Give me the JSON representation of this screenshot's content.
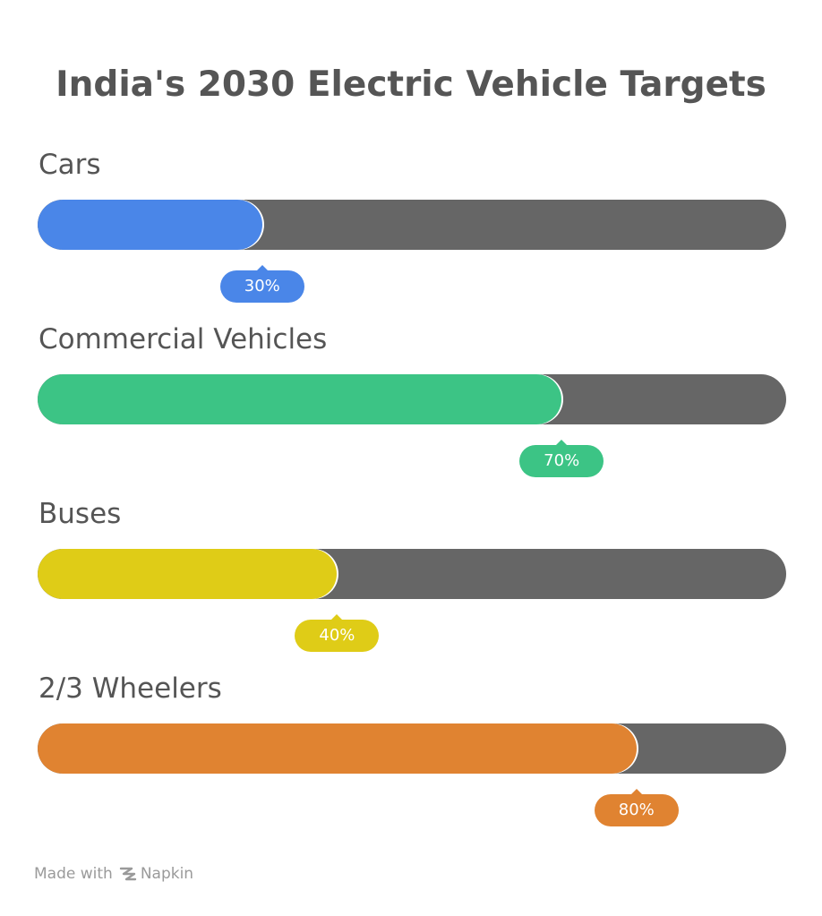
{
  "chart_data": {
    "type": "bar",
    "title": "India's 2030 Electric Vehicle Targets",
    "orientation": "horizontal",
    "unit": "%",
    "ylim": [
      0,
      100
    ],
    "categories": [
      "Cars",
      "Commercial Vehicles",
      "Buses",
      "2/3 Wheelers"
    ],
    "values": [
      30,
      70,
      40,
      80
    ],
    "value_labels": [
      "30%",
      "70%",
      "40%",
      "80%"
    ],
    "colors": [
      "#4a86e8",
      "#3cc485",
      "#dfcc17",
      "#e08331"
    ],
    "track_color": "#666666"
  },
  "footer": {
    "made_with": "Made with",
    "brand": "Napkin"
  }
}
